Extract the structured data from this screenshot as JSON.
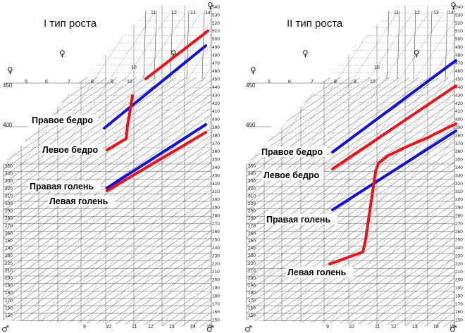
{
  "charts": [
    {
      "title": "I тип роста",
      "labels": [
        "Правое бедро",
        "Левое бедро",
        "Правая голень",
        "Левая голень"
      ],
      "left_ticks": [
        "350",
        "340",
        "330",
        "320",
        "310",
        "300",
        "290",
        "280",
        "270",
        "260",
        "250",
        "240",
        "230",
        "220",
        "210",
        "200",
        "190",
        "180",
        "170",
        "160",
        "150"
      ],
      "right_ticks": [
        "540",
        "530",
        "520",
        "510",
        "500",
        "490",
        "480",
        "470",
        "460",
        "450",
        "440",
        "430",
        "420",
        "410",
        "400",
        "390",
        "380",
        "370",
        "360",
        "350",
        "340",
        "330",
        "320",
        "310",
        "300",
        "290",
        "280",
        "270",
        "260",
        "250",
        "240",
        "230",
        "220",
        "210",
        "200",
        "190",
        "180",
        "170",
        "160",
        "150"
      ],
      "left_upper_ticks": [
        "450",
        "400"
      ],
      "top_ages": [
        "11",
        "12",
        "13",
        "14"
      ],
      "mid_ages": [
        "5",
        "6",
        "7",
        "8",
        "9",
        "10"
      ],
      "bottom_ages": [
        "9",
        "10",
        "11",
        "12",
        "13",
        "14",
        "15"
      ],
      "mid_age_extra": "10"
    },
    {
      "title": "II тип роста",
      "labels": [
        "Правое бедро",
        "Левое бедро",
        "Правая голень",
        "Левая голень"
      ],
      "left_ticks": [
        "350",
        "340",
        "330",
        "320",
        "310",
        "300",
        "290",
        "280",
        "270",
        "260",
        "250",
        "240",
        "230",
        "220",
        "210",
        "200",
        "190",
        "180",
        "170",
        "160",
        "150"
      ],
      "right_ticks": [
        "540",
        "530",
        "520",
        "510",
        "500",
        "490",
        "480",
        "470",
        "460",
        "450",
        "440",
        "430",
        "420",
        "410",
        "400",
        "390",
        "380",
        "370",
        "360",
        "350",
        "340",
        "330",
        "320",
        "310",
        "300",
        "290",
        "280",
        "270",
        "260",
        "250",
        "240",
        "230",
        "220",
        "210",
        "200",
        "190",
        "180",
        "170",
        "160",
        "150"
      ],
      "left_upper_ticks": [
        "450",
        "400"
      ],
      "top_ages": [
        "11",
        "12",
        "13",
        "14"
      ],
      "mid_ages": [
        "5",
        "6",
        "7",
        "8",
        "9",
        "10"
      ],
      "bottom_ages": [
        "9",
        "10",
        "11",
        "12",
        "13",
        "14",
        "15"
      ],
      "mid_age_extra": "10"
    }
  ],
  "sex_symbols": {
    "female": "♀",
    "male": "♂"
  },
  "colors": {
    "red": "#e8141b",
    "blue": "#1212d6",
    "grid": "#444444",
    "hatch": "#777777"
  }
}
